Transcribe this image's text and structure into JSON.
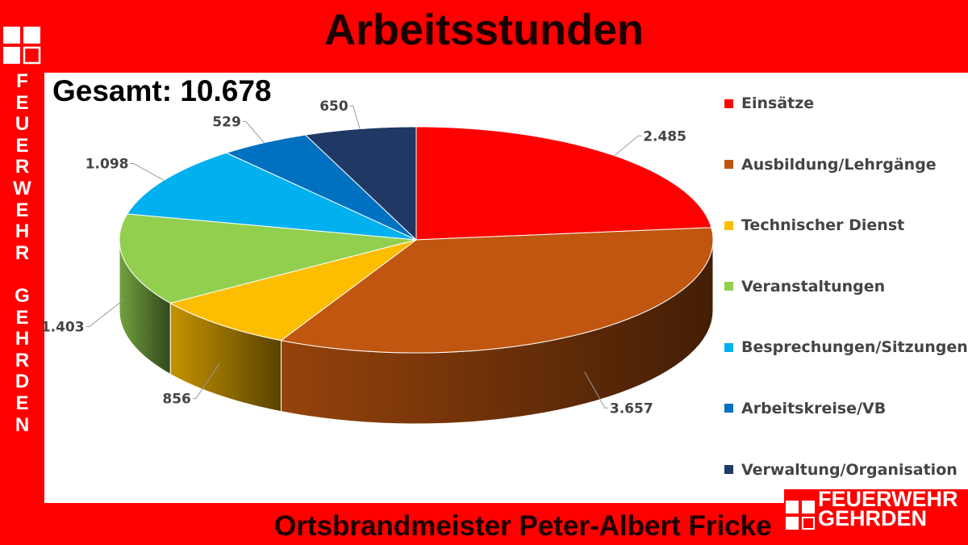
{
  "header": {
    "title": "Arbeitsstunden"
  },
  "side_text": [
    "F",
    "E",
    "U",
    "E",
    "R",
    "W",
    "E",
    "H",
    "R",
    "",
    "G",
    "E",
    "H",
    "R",
    "D",
    "E",
    "N"
  ],
  "total_label": "Gesamt: 10.678",
  "footer": "Ortsbrandmeister Peter-Albert Fricke",
  "corner_logo": {
    "line1": "FEUERWEHR",
    "line2": "GEHRDEN"
  },
  "chart_data": {
    "type": "pie",
    "title": "Arbeitsstunden",
    "total": "Gesamt: 10.678",
    "legend_position": "right",
    "slices": [
      {
        "name": "Einsätze",
        "value": 2485,
        "label": "2.485",
        "color": "#fe0000"
      },
      {
        "name": "Ausbildung/Lehrgänge",
        "value": 3657,
        "label": "3.657",
        "color": "#c0560f"
      },
      {
        "name": "Technischer Dienst",
        "value": 856,
        "label": "856",
        "color": "#fdbd00"
      },
      {
        "name": "Veranstaltungen",
        "value": 1403,
        "label": "1.403",
        "color": "#92cf4f"
      },
      {
        "name": "Besprechungen/Sitzungen",
        "value": 1098,
        "label": "1.098",
        "color": "#00b0ef"
      },
      {
        "name": "Arbeitskreise/VB",
        "value": 529,
        "label": "529",
        "color": "#0071c0"
      },
      {
        "name": "Verwaltung/Organisation",
        "value": 650,
        "label": "650",
        "color": "#203864"
      }
    ]
  }
}
